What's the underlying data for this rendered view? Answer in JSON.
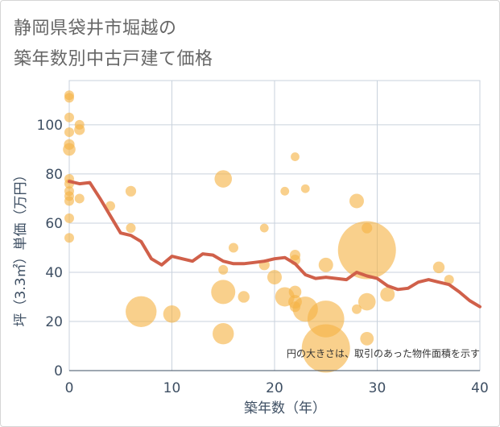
{
  "chart_data": {
    "type": "scatter",
    "title_line1": "静岡県袋井市堀越の",
    "title_line2": "築年数別中古戸建て価格",
    "xlabel": "築年数（年）",
    "ylabel": "坪（3.3㎡）単価（万円）",
    "xlim": [
      0,
      40
    ],
    "ylim": [
      0,
      118
    ],
    "xticks": [
      0,
      10,
      20,
      30,
      40
    ],
    "yticks": [
      0,
      20,
      40,
      60,
      80,
      100
    ],
    "note": "円の大きさは、取引のあった物件面積を示す",
    "colors": {
      "bubble": "#f5b345",
      "line": "#d0604a",
      "grid": "#c9d2dc",
      "tick": "#3e4f63"
    },
    "points": [
      {
        "x": 0,
        "y": 112,
        "s": 1
      },
      {
        "x": 0,
        "y": 111,
        "s": 1
      },
      {
        "x": 0,
        "y": 103,
        "s": 1
      },
      {
        "x": 0,
        "y": 97,
        "s": 1
      },
      {
        "x": 0,
        "y": 92,
        "s": 1.1
      },
      {
        "x": 0,
        "y": 90,
        "s": 1.3
      },
      {
        "x": 0,
        "y": 78,
        "s": 1
      },
      {
        "x": 0,
        "y": 76,
        "s": 1
      },
      {
        "x": 0,
        "y": 73,
        "s": 1
      },
      {
        "x": 0,
        "y": 71,
        "s": 1
      },
      {
        "x": 0,
        "y": 69,
        "s": 1
      },
      {
        "x": 0,
        "y": 62,
        "s": 1
      },
      {
        "x": 0,
        "y": 54,
        "s": 1
      },
      {
        "x": 1,
        "y": 100,
        "s": 1
      },
      {
        "x": 1,
        "y": 98,
        "s": 1.1
      },
      {
        "x": 1,
        "y": 70,
        "s": 1
      },
      {
        "x": 4,
        "y": 67,
        "s": 1
      },
      {
        "x": 6,
        "y": 73,
        "s": 1.1
      },
      {
        "x": 6,
        "y": 58,
        "s": 1
      },
      {
        "x": 7,
        "y": 24,
        "s": 3.2
      },
      {
        "x": 10,
        "y": 23,
        "s": 1.8
      },
      {
        "x": 15,
        "y": 78,
        "s": 1.8
      },
      {
        "x": 15,
        "y": 41,
        "s": 1
      },
      {
        "x": 15,
        "y": 32,
        "s": 2.5
      },
      {
        "x": 15,
        "y": 15,
        "s": 2.2
      },
      {
        "x": 16,
        "y": 50,
        "s": 1
      },
      {
        "x": 17,
        "y": 30,
        "s": 1.2
      },
      {
        "x": 19,
        "y": 58,
        "s": 0.9
      },
      {
        "x": 19,
        "y": 43,
        "s": 1.1
      },
      {
        "x": 20,
        "y": 38,
        "s": 1.5
      },
      {
        "x": 21,
        "y": 73,
        "s": 0.9
      },
      {
        "x": 21,
        "y": 30,
        "s": 2.0
      },
      {
        "x": 22,
        "y": 87,
        "s": 0.9
      },
      {
        "x": 22,
        "y": 47,
        "s": 1.1
      },
      {
        "x": 22,
        "y": 45,
        "s": 1.1
      },
      {
        "x": 22,
        "y": 32,
        "s": 1.3
      },
      {
        "x": 22,
        "y": 28,
        "s": 1.4
      },
      {
        "x": 22,
        "y": 26,
        "s": 1.1
      },
      {
        "x": 23,
        "y": 74,
        "s": 0.9
      },
      {
        "x": 23,
        "y": 25,
        "s": 2.6
      },
      {
        "x": 25,
        "y": 43,
        "s": 1.5
      },
      {
        "x": 25,
        "y": 21,
        "s": 3.8
      },
      {
        "x": 25,
        "y": 9,
        "s": 5.0
      },
      {
        "x": 28,
        "y": 69,
        "s": 1.5
      },
      {
        "x": 28,
        "y": 25,
        "s": 1
      },
      {
        "x": 29,
        "y": 58,
        "s": 1.1
      },
      {
        "x": 29,
        "y": 49,
        "s": 6.0
      },
      {
        "x": 29,
        "y": 28,
        "s": 1.8
      },
      {
        "x": 29,
        "y": 13,
        "s": 1.4
      },
      {
        "x": 31,
        "y": 31,
        "s": 1.5
      },
      {
        "x": 36,
        "y": 42,
        "s": 1.2
      },
      {
        "x": 37,
        "y": 37,
        "s": 1
      }
    ],
    "trend": {
      "x": [
        0,
        1,
        2,
        3,
        4,
        5,
        6,
        7,
        8,
        9,
        10,
        11,
        12,
        13,
        14,
        15,
        16,
        17,
        18,
        19,
        20,
        21,
        22,
        23,
        24,
        25,
        26,
        27,
        28,
        29,
        30,
        31,
        32,
        33,
        34,
        35,
        36,
        37,
        38,
        39,
        40
      ],
      "y": [
        77,
        76,
        76.5,
        70,
        63,
        56,
        55,
        52.5,
        45.5,
        43,
        46.5,
        45.5,
        44.5,
        47.5,
        47,
        44.5,
        43.5,
        43.5,
        44,
        44.5,
        45.5,
        46,
        43.5,
        39,
        37.5,
        38,
        37.5,
        37,
        40,
        38.5,
        37.5,
        34.5,
        33,
        33.5,
        36,
        37,
        36,
        35,
        32,
        28.5,
        26
      ]
    }
  }
}
